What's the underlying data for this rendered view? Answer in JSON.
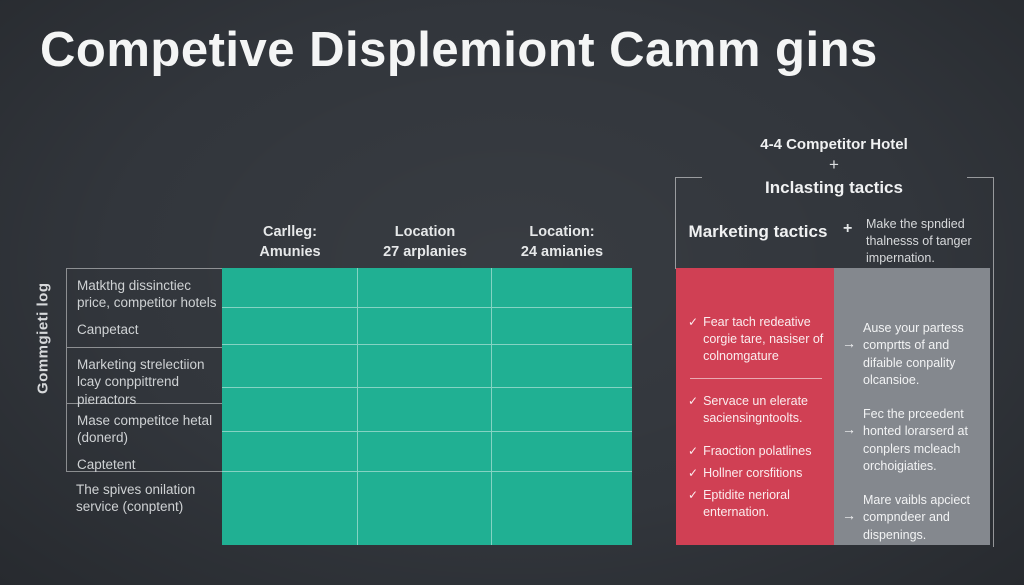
{
  "title": "Competive Displemiont Camm gins",
  "table": {
    "side_label": "Gommgieti log",
    "column_headers": [
      {
        "line1": "Carlleg:",
        "line2": "Amunies"
      },
      {
        "line1": "Location",
        "line2": "27 arplanies"
      },
      {
        "line1": "Location:",
        "line2": "24 amianies"
      }
    ],
    "row_labels": [
      {
        "label": "Matkthg dissinctiec price, competitor hotels",
        "sublabel": "Canpetact"
      },
      {
        "label": "Marketing strelectiion lcay conppittrend pieractors",
        "sublabel": ""
      },
      {
        "label": "Mase competitce hetal (donerd)",
        "sublabel": "Captetent"
      },
      {
        "label": "The spives onilation service (conptent)",
        "sublabel": ""
      }
    ],
    "grid": {
      "columns": 3,
      "rows": 6,
      "cells_empty": true
    }
  },
  "right_panel": {
    "header": "4-4 Competitor Hotel",
    "plus": "+",
    "subheader": "Inclasting tactics",
    "tactics_label": "Marketing tactics",
    "tactics_plus": "+",
    "tactics_note": "Make the spndied thalnesss of tanger impernation.",
    "red_items": [
      {
        "text": "Fear tach redeative corgie tare, nasiser of colnomgature"
      },
      {
        "text": "Servace un elerate saciensingntoolts."
      },
      {
        "text": "Fraoction polatlines"
      },
      {
        "text": "Hollner corsfitions"
      },
      {
        "text": "Eptidite nerioral enternation."
      }
    ],
    "gray_items": [
      {
        "text": "Ause your partess comprtts of and difaible conpality olcansioe."
      },
      {
        "text": "Fec the prceedent honted lorarserd at conplers mcleach orchoigiaties."
      },
      {
        "text": "Mare vaibls apciect compndeer and dispenings."
      }
    ]
  },
  "icons": {
    "check": "✓",
    "arrow": "→"
  },
  "colors": {
    "background": "#32363c",
    "teal": "#20b093",
    "red": "#d04054",
    "gray": "#84888e",
    "text_light": "#f4f5f5"
  }
}
